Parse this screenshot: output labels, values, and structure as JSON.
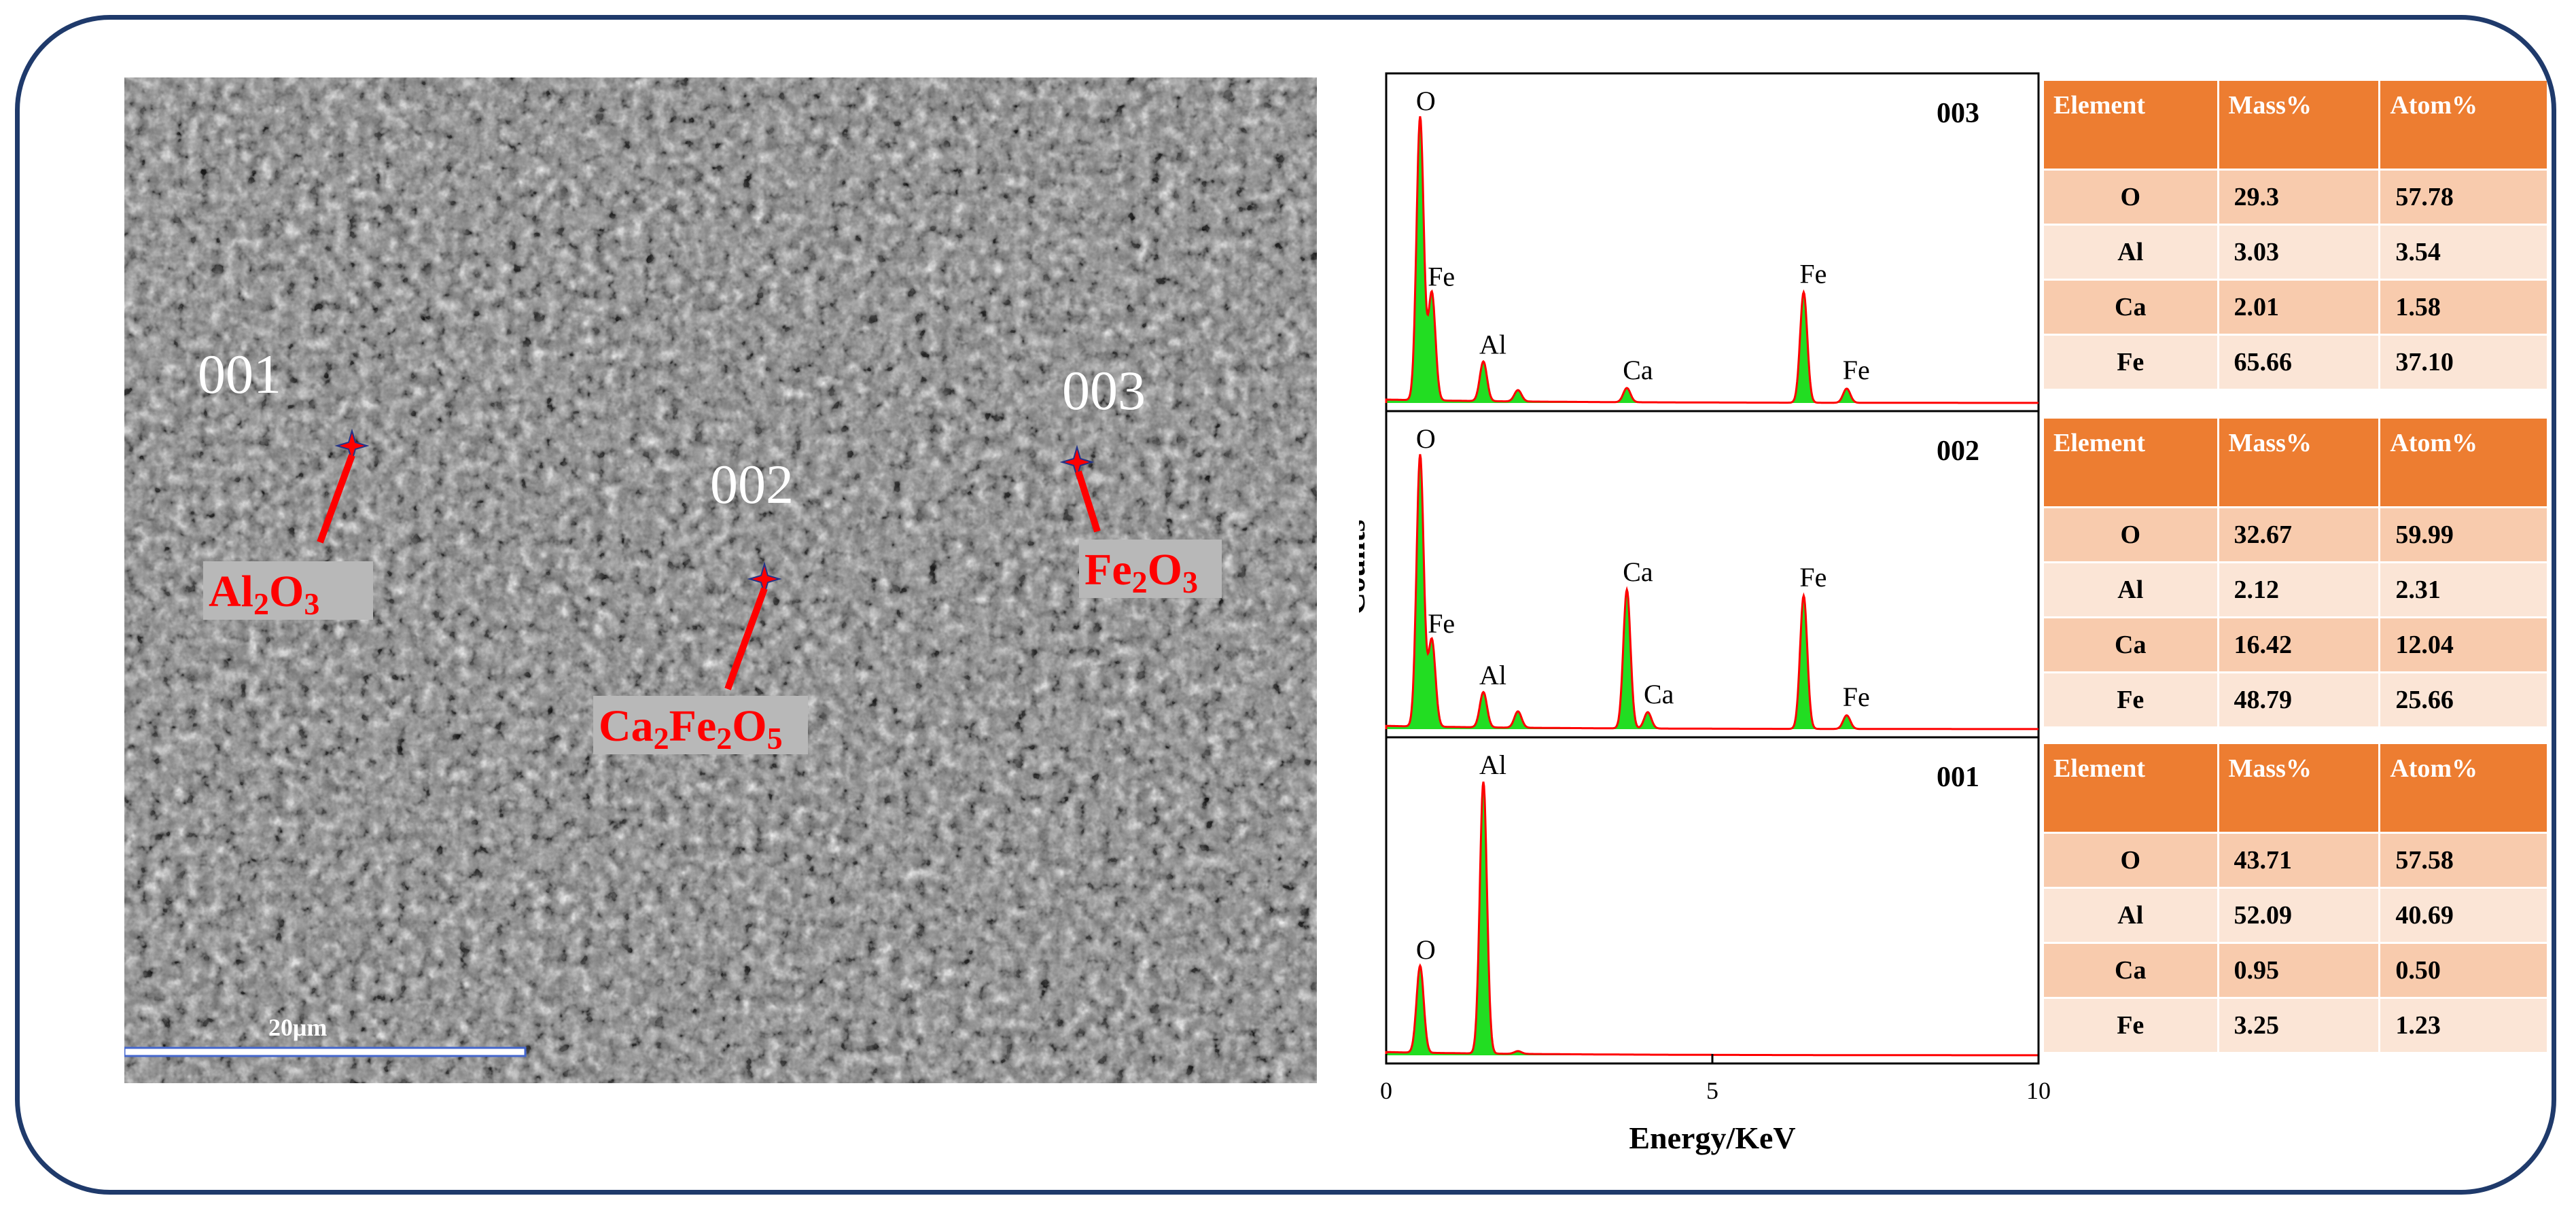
{
  "sem_image": {
    "scale_bar_label": "20μm",
    "points": [
      {
        "id": "001",
        "phase_parts": [
          {
            "t": "Al"
          },
          {
            "t": "2",
            "sub": true
          },
          {
            "t": "O"
          },
          {
            "t": "3",
            "sub": true
          }
        ]
      },
      {
        "id": "002",
        "phase_parts": [
          {
            "t": "Ca"
          },
          {
            "t": "2",
            "sub": true
          },
          {
            "t": "Fe"
          },
          {
            "t": "2",
            "sub": true
          },
          {
            "t": "O"
          },
          {
            "t": "5",
            "sub": true
          }
        ]
      },
      {
        "id": "003",
        "phase_parts": [
          {
            "t": "Fe"
          },
          {
            "t": "2",
            "sub": true
          },
          {
            "t": "O"
          },
          {
            "t": "3",
            "sub": true
          }
        ]
      }
    ],
    "marker_color": "#ff0000",
    "label_bg": "#b8b8b8"
  },
  "chart_data": {
    "type": "line",
    "xlabel": "Energy/KeV",
    "ylabel": "Counts",
    "xlim": [
      0,
      10
    ],
    "xticks": [
      "0",
      "5",
      "10"
    ],
    "fill_color": "#22dd22",
    "line_color": "#ff0000",
    "panels": [
      {
        "label": "003",
        "peaks": [
          {
            "e": 0.52,
            "h": 1.0,
            "label": "O"
          },
          {
            "e": 0.7,
            "h": 0.38,
            "label": "Fe"
          },
          {
            "e": 1.49,
            "h": 0.14,
            "label": "Al"
          },
          {
            "e": 2.02,
            "h": 0.04,
            "label": ""
          },
          {
            "e": 3.69,
            "h": 0.05,
            "label": "Ca"
          },
          {
            "e": 6.4,
            "h": 0.39,
            "label": "Fe"
          },
          {
            "e": 7.06,
            "h": 0.05,
            "label": "Fe"
          }
        ]
      },
      {
        "label": "002",
        "peaks": [
          {
            "e": 0.52,
            "h": 1.0,
            "label": "O"
          },
          {
            "e": 0.7,
            "h": 0.32,
            "label": "Fe"
          },
          {
            "e": 1.49,
            "h": 0.13,
            "label": "Al"
          },
          {
            "e": 2.02,
            "h": 0.06,
            "label": ""
          },
          {
            "e": 3.69,
            "h": 0.51,
            "label": "Ca"
          },
          {
            "e": 4.01,
            "h": 0.06,
            "label": "Ca"
          },
          {
            "e": 6.4,
            "h": 0.49,
            "label": "Fe"
          },
          {
            "e": 7.06,
            "h": 0.05,
            "label": "Fe"
          }
        ]
      },
      {
        "label": "001",
        "peaks": [
          {
            "e": 0.52,
            "h": 0.32,
            "label": "O"
          },
          {
            "e": 1.49,
            "h": 1.0,
            "label": "Al"
          },
          {
            "e": 2.02,
            "h": 0.01,
            "label": ""
          }
        ]
      }
    ]
  },
  "tables": {
    "headers": [
      "Element",
      "Mass%",
      "Atom%"
    ],
    "panels": [
      {
        "point": "003",
        "rows": [
          [
            "O",
            "29.3",
            "57.78"
          ],
          [
            "Al",
            "3.03",
            "3.54"
          ],
          [
            "Ca",
            "2.01",
            "1.58"
          ],
          [
            "Fe",
            "65.66",
            "37.10"
          ]
        ]
      },
      {
        "point": "002",
        "rows": [
          [
            "O",
            "32.67",
            "59.99"
          ],
          [
            "Al",
            "2.12",
            "2.31"
          ],
          [
            "Ca",
            "16.42",
            "12.04"
          ],
          [
            "Fe",
            "48.79",
            "25.66"
          ]
        ]
      },
      {
        "point": "001",
        "rows": [
          [
            "O",
            "43.71",
            "57.58"
          ],
          [
            "Al",
            "52.09",
            "40.69"
          ],
          [
            "Ca",
            "0.95",
            "0.50"
          ],
          [
            "Fe",
            "3.25",
            "1.23"
          ]
        ]
      }
    ]
  }
}
